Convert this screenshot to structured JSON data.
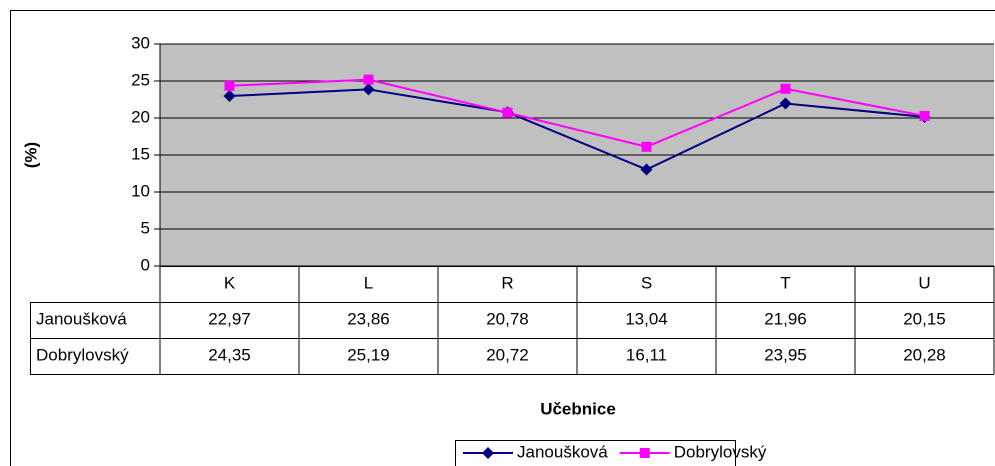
{
  "chart_data": {
    "type": "line",
    "x_label": "Učebnice",
    "y_label": "(%)",
    "categories": [
      "K",
      "L",
      "R",
      "S",
      "T",
      "U"
    ],
    "series": [
      {
        "name": "Janoušková",
        "color": "#000080",
        "marker": "diamond",
        "values": [
          22.97,
          23.86,
          20.78,
          13.04,
          21.96,
          20.15
        ],
        "value_labels": [
          "22,97",
          "23,86",
          "20,78",
          "13,04",
          "21,96",
          "20,15"
        ]
      },
      {
        "name": "Dobrylovský",
        "color": "#ff00ff",
        "marker": "square",
        "values": [
          24.35,
          25.19,
          20.72,
          16.11,
          23.95,
          20.28
        ],
        "value_labels": [
          "24,35",
          "25,19",
          "20,72",
          "16,11",
          "23,95",
          "20,28"
        ]
      }
    ],
    "ylim": [
      0,
      30
    ],
    "yticks": [
      0,
      5,
      10,
      15,
      20,
      25,
      30
    ],
    "grid": true,
    "plot_background": "#c0c0c0",
    "legend": "bottom"
  }
}
